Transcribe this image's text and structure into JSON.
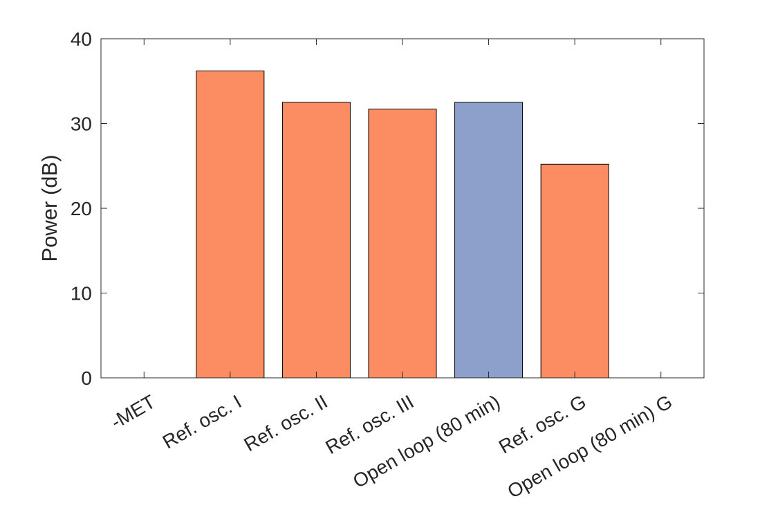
{
  "chart_data": {
    "type": "bar",
    "title": "",
    "xlabel": "",
    "ylabel": "Power (dB)",
    "ylim": [
      0,
      40
    ],
    "yticks": [
      0,
      10,
      20,
      30,
      40
    ],
    "categories": [
      "-MET",
      "Ref. osc. I",
      "Ref. osc. II",
      "Ref. osc. III",
      "Open loop (80 min)",
      "Ref. osc. G",
      "Open loop (80 min) G"
    ],
    "values": [
      0,
      36.2,
      32.5,
      31.7,
      32.5,
      25.2,
      0
    ],
    "bar_colors": [
      "#fc8d62",
      "#fc8d62",
      "#fc8d62",
      "#fc8d62",
      "#8da0cb",
      "#fc8d62",
      "#fc8d62"
    ],
    "grid": false,
    "legend": null
  }
}
